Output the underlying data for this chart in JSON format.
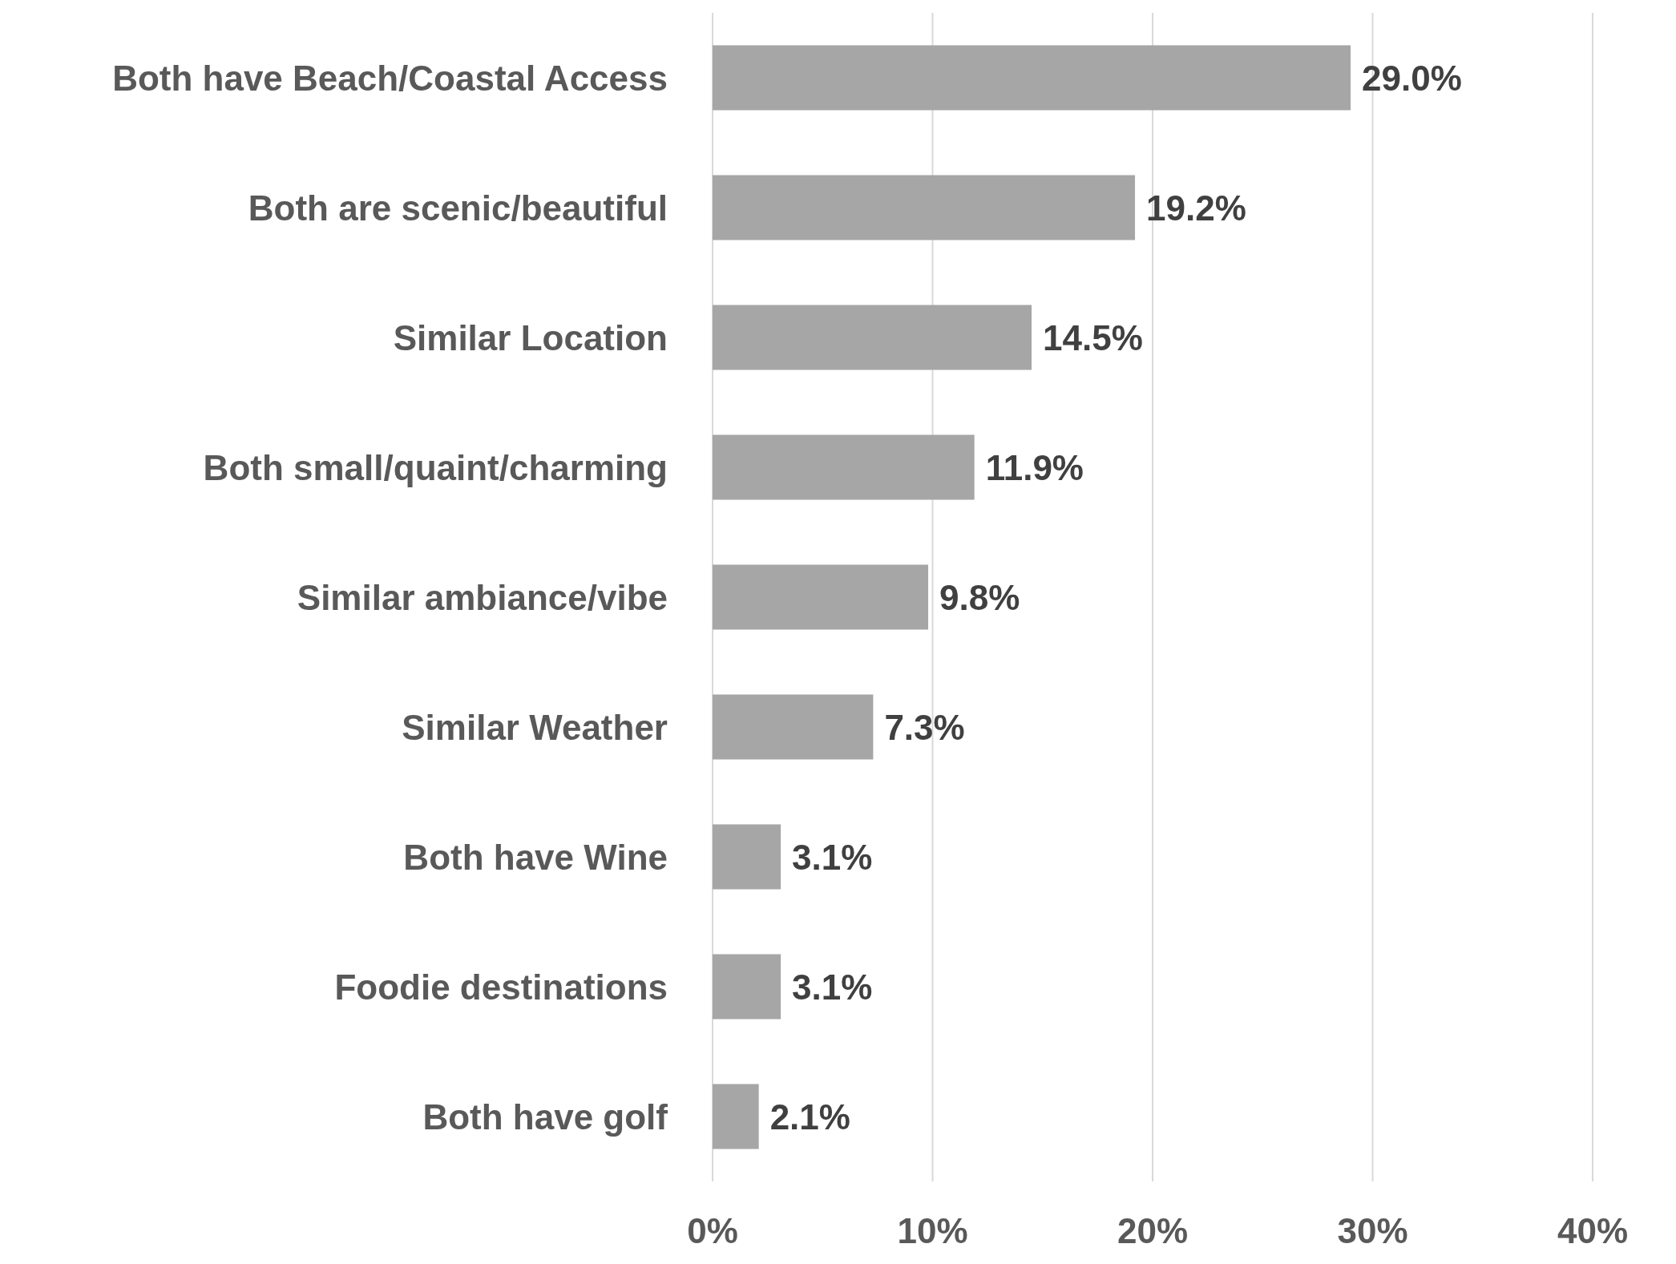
{
  "chart_data": {
    "type": "bar",
    "orientation": "horizontal",
    "categories": [
      "Both have Beach/Coastal Access",
      "Both are scenic/beautiful",
      "Similar Location",
      "Both small/quaint/charming",
      "Similar ambiance/vibe",
      "Similar Weather",
      "Both have Wine",
      "Foodie destinations",
      "Both have golf"
    ],
    "values": [
      29.0,
      19.2,
      14.5,
      11.9,
      9.8,
      7.3,
      3.1,
      3.1,
      2.1
    ],
    "value_labels": [
      "29.0%",
      "19.2%",
      "14.5%",
      "11.9%",
      "9.8%",
      "7.3%",
      "3.1%",
      "3.1%",
      "2.1%"
    ],
    "color": "#a6a6a6",
    "xlim": [
      0,
      40
    ],
    "xticks": [
      {
        "value": 0,
        "label": "0%"
      },
      {
        "value": 10,
        "label": "10%"
      },
      {
        "value": 20,
        "label": "20%"
      },
      {
        "value": 30,
        "label": "30%"
      },
      {
        "value": 40,
        "label": "40%"
      }
    ],
    "grid": "x"
  }
}
